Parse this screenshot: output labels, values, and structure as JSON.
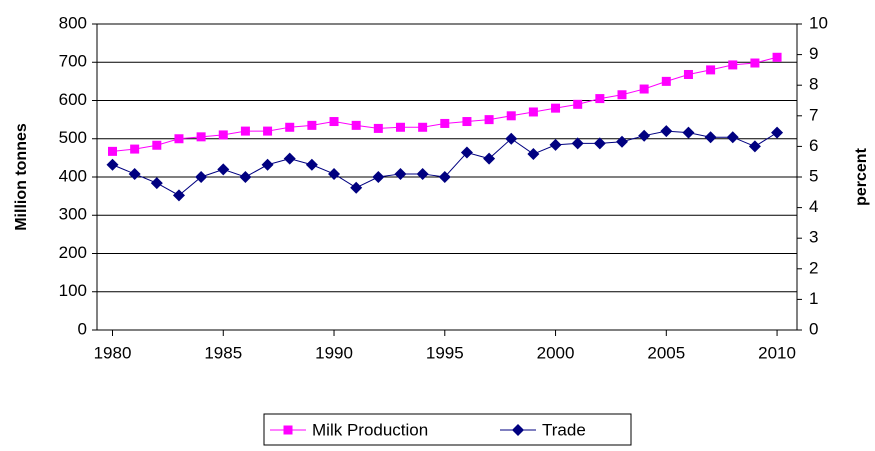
{
  "chart_data": {
    "type": "line",
    "ylabel": "Million tonnes",
    "y2label": "percent",
    "x": [
      1980,
      1981,
      1982,
      1983,
      1984,
      1985,
      1986,
      1987,
      1988,
      1989,
      1990,
      1991,
      1992,
      1993,
      1994,
      1995,
      1996,
      1997,
      1998,
      1999,
      2000,
      2001,
      2002,
      2003,
      2004,
      2005,
      2006,
      2007,
      2008,
      2009,
      2010
    ],
    "xlim": [
      1979.3,
      2010.9
    ],
    "xticks": [
      1980,
      1985,
      1990,
      1995,
      2000,
      2005,
      2010
    ],
    "ylim": [
      0,
      800
    ],
    "yticks": [
      0,
      100,
      200,
      300,
      400,
      500,
      600,
      700,
      800
    ],
    "y2lim": [
      0,
      10
    ],
    "y2ticks": [
      0,
      1,
      2,
      3,
      4,
      5,
      6,
      7,
      8,
      9,
      10
    ],
    "grid": true,
    "legend": "bottom",
    "series": [
      {
        "name": "Milk Production",
        "color": "#ff00ff",
        "marker": "square",
        "values": [
          467,
          473,
          483,
          500,
          505,
          510,
          520,
          520,
          530,
          535,
          545,
          535,
          527,
          530,
          530,
          540,
          545,
          550,
          560,
          570,
          580,
          590,
          605,
          615,
          630,
          650,
          668,
          680,
          693,
          698,
          713
        ]
      },
      {
        "name": "Trade",
        "color": "#000080",
        "marker": "diamond",
        "axis": "y2",
        "values": [
          5.4,
          5.1,
          4.8,
          4.4,
          5.0,
          5.25,
          5.0,
          5.4,
          5.6,
          5.4,
          5.1,
          4.65,
          5.0,
          5.1,
          5.1,
          5.0,
          5.8,
          5.6,
          6.25,
          5.75,
          6.05,
          6.1,
          6.1,
          6.15,
          6.35,
          6.5,
          6.45,
          6.3,
          6.3,
          6.0,
          6.45
        ]
      }
    ]
  }
}
